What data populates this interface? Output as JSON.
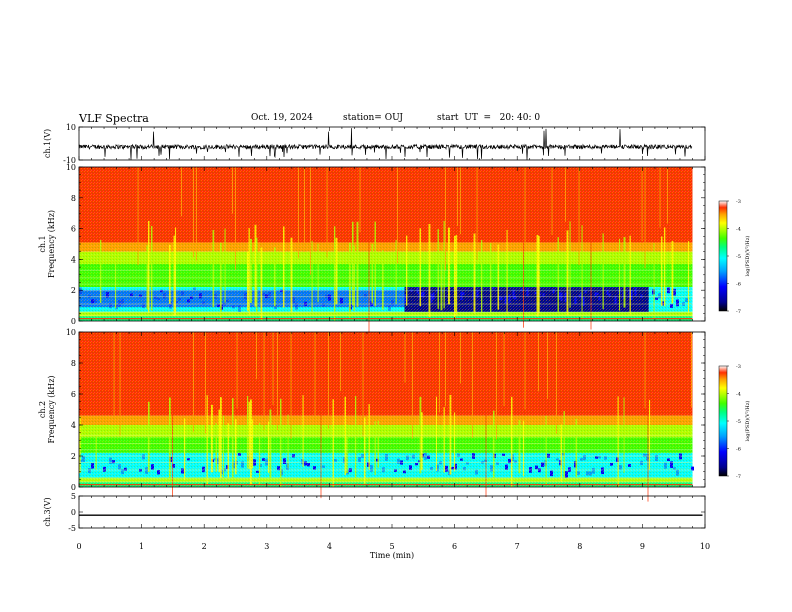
{
  "header": {
    "title": "VLF Spectra",
    "date": "Oct. 19, 2024",
    "station": "station= OUJ",
    "start": "start  UT  =   20: 40: 0"
  },
  "chart_data": [
    {
      "type": "line",
      "panel": "ch1-waveform",
      "ylabel": "ch.1(V)",
      "ylim": [
        -10,
        10
      ],
      "yticks": [
        "10",
        "-10"
      ],
      "description_series": {
        "baseline": -2,
        "typical_range": [
          -4.5,
          -0.5
        ],
        "spikes_to": [
          -10,
          10
        ]
      },
      "color": "#000000"
    },
    {
      "type": "heatmap",
      "panel": "ch1-spectrogram",
      "ylabel": "ch.1\nFrequency (kHz)",
      "ylim": [
        0,
        10
      ],
      "yticks": [
        "0",
        "2",
        "4",
        "6",
        "8",
        "10"
      ],
      "xlim": [
        0,
        10
      ],
      "data_extent_min": [
        0,
        9.8
      ],
      "colorbar": {
        "label": "log(PSD)(V²/Hz)",
        "range": [
          -7,
          -3
        ],
        "ticks": [
          "-3",
          "-4",
          "-5",
          "-6",
          "-7"
        ]
      },
      "features": {
        "high_band_above_khz": 4.5,
        "deep_blue_segment_min": [
          5.2,
          9.1
        ],
        "deep_blue_freq_khz": [
          0.6,
          2.2
        ]
      }
    },
    {
      "type": "heatmap",
      "panel": "ch2-spectrogram",
      "ylabel": "ch.2\nFrequency (kHz)",
      "ylim": [
        0,
        10
      ],
      "yticks": [
        "0",
        "2",
        "4",
        "6",
        "8",
        "10"
      ],
      "xlim": [
        0,
        10
      ],
      "data_extent_min": [
        0,
        9.8
      ],
      "colorbar": {
        "label": "log(PSD)(V²/Hz)",
        "range": [
          -7,
          -3
        ],
        "ticks": [
          "-3",
          "-4",
          "-5",
          "-6",
          "-7"
        ]
      },
      "features": {
        "high_band_above_khz": 4.0,
        "light_blue_freq_khz": [
          1.0,
          2.2
        ]
      }
    },
    {
      "type": "line",
      "panel": "ch3-waveform",
      "ylabel": "ch.3(V)",
      "ylim": [
        -5,
        5
      ],
      "yticks": [
        "5",
        "0",
        "-5"
      ],
      "constant_value": -1,
      "xlabel": "Time (min)",
      "xticks": [
        "0",
        "1",
        "2",
        "3",
        "4",
        "5",
        "6",
        "7",
        "8",
        "9",
        "10"
      ],
      "color": "#000000"
    }
  ],
  "colormap": [
    "#00008f",
    "#0000ff",
    "#00a0ff",
    "#00ffff",
    "#00ff80",
    "#40ff00",
    "#b0ff00",
    "#ffff00",
    "#ffa000",
    "#ff3000"
  ]
}
